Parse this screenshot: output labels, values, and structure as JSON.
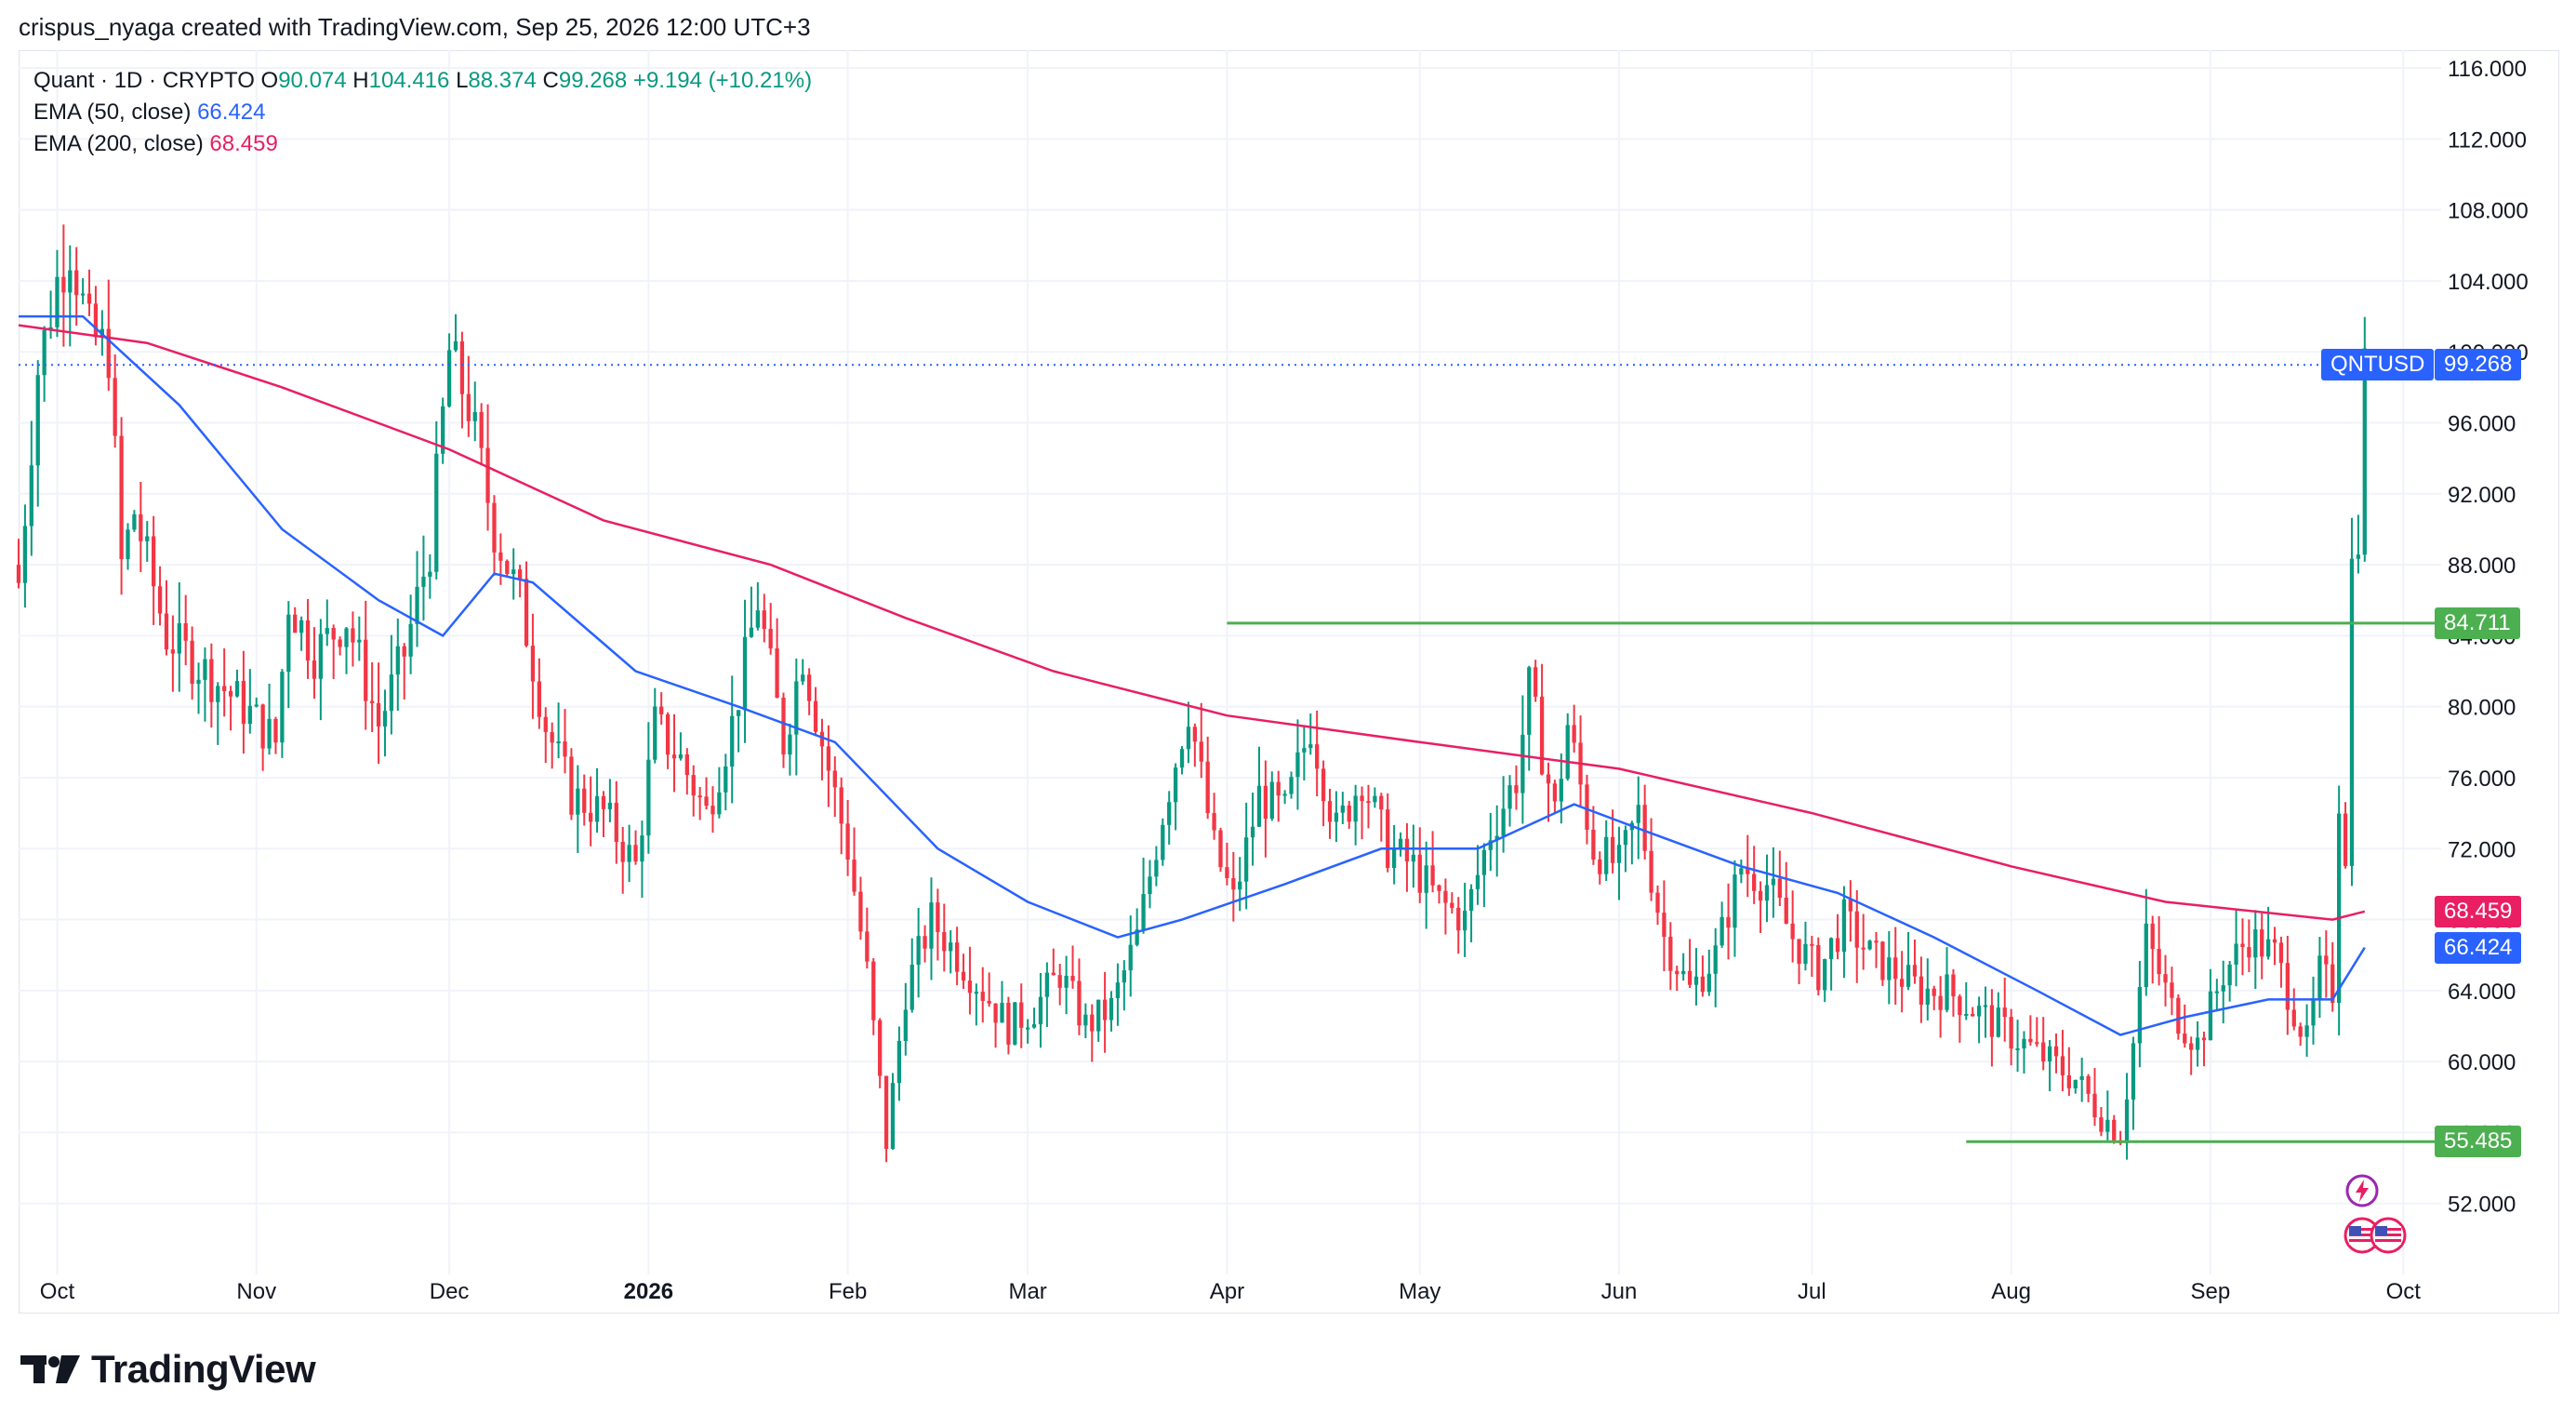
{
  "header": {
    "attribution": "crispus_nyaga created with TradingView.com, Sep 25, 2026 12:00 UTC+3"
  },
  "legend": {
    "symbol": "Quant · 1D · CRYPTO",
    "open_label": "O",
    "open": "90.074",
    "high_label": "H",
    "high": "104.416",
    "low_label": "L",
    "low": "88.374",
    "close_label": "C",
    "close": "99.268",
    "change": "+9.194 (+10.21%)",
    "ema50_label": "EMA (50, close)",
    "ema50_value": "66.424",
    "ema200_label": "EMA (200, close)",
    "ema200_value": "68.459"
  },
  "tags": {
    "symbol_tag": "QNTUSD",
    "last_price": "99.268",
    "resistance": "84.711",
    "ema200": "68.459",
    "ema50": "66.424",
    "support": "55.485"
  },
  "colors": {
    "up": "#089981",
    "down": "#f23645",
    "ema50": "#2962ff",
    "ema200": "#e91e63",
    "level": "#4caf50",
    "grid": "#f0f3fa",
    "last_price": "#2962ff"
  },
  "footer": {
    "brand": "TradingView"
  },
  "chart_data": {
    "type": "candlestick",
    "ylim": [
      48,
      117
    ],
    "y_ticks": [
      "52.000",
      "56.000",
      "60.000",
      "64.000",
      "68.000",
      "72.000",
      "76.000",
      "80.000",
      "84.000",
      "88.000",
      "92.000",
      "96.000",
      "100.000",
      "104.000",
      "108.000",
      "112.000",
      "116.000"
    ],
    "x_ticks": [
      {
        "label": "Oct",
        "date": "2025-10-01",
        "bold": false
      },
      {
        "label": "Nov",
        "date": "2025-11-01",
        "bold": false
      },
      {
        "label": "Dec",
        "date": "2025-12-01",
        "bold": false
      },
      {
        "label": "2026",
        "date": "2026-01-01",
        "bold": true
      },
      {
        "label": "Feb",
        "date": "2026-02-01",
        "bold": false
      },
      {
        "label": "Mar",
        "date": "2026-03-01",
        "bold": false
      },
      {
        "label": "Apr",
        "date": "2026-04-01",
        "bold": false
      },
      {
        "label": "May",
        "date": "2026-05-01",
        "bold": false
      },
      {
        "label": "Jun",
        "date": "2026-06-01",
        "bold": false
      },
      {
        "label": "Jul",
        "date": "2026-07-01",
        "bold": false
      },
      {
        "label": "Aug",
        "date": "2026-08-01",
        "bold": false
      },
      {
        "label": "Sep",
        "date": "2026-09-01",
        "bold": false
      },
      {
        "label": "Oct",
        "date": "2026-10-01",
        "bold": false
      }
    ],
    "x_range": [
      "2025-09-25",
      "2026-10-04"
    ],
    "series": [
      {
        "name": "EMA (50, close)",
        "kind": "line"
      },
      {
        "name": "EMA (200, close)",
        "kind": "line"
      }
    ],
    "close_path": [
      [
        "2025-09-25",
        87
      ],
      [
        "2025-09-28",
        99
      ],
      [
        "2025-10-01",
        104
      ],
      [
        "2025-10-03",
        106
      ],
      [
        "2025-10-06",
        101
      ],
      [
        "2025-10-09",
        100
      ],
      [
        "2025-10-11",
        88
      ],
      [
        "2025-10-13",
        91
      ],
      [
        "2025-10-18",
        84
      ],
      [
        "2025-10-24",
        82
      ],
      [
        "2025-10-30",
        80
      ],
      [
        "2025-11-04",
        78
      ],
      [
        "2025-11-06",
        86
      ],
      [
        "2025-11-10",
        83
      ],
      [
        "2025-11-15",
        85
      ],
      [
        "2025-11-20",
        79
      ],
      [
        "2025-11-24",
        83
      ],
      [
        "2025-11-28",
        89
      ],
      [
        "2025-12-01",
        100
      ],
      [
        "2025-12-04",
        97
      ],
      [
        "2025-12-08",
        90
      ],
      [
        "2025-12-12",
        86
      ],
      [
        "2025-12-16",
        79
      ],
      [
        "2025-12-20",
        75
      ],
      [
        "2025-12-25",
        74
      ],
      [
        "2025-12-30",
        71
      ],
      [
        "2026-01-02",
        79
      ],
      [
        "2026-01-06",
        77
      ],
      [
        "2026-01-10",
        74
      ],
      [
        "2026-01-14",
        79
      ],
      [
        "2026-01-18",
        86
      ],
      [
        "2026-01-22",
        78
      ],
      [
        "2026-01-25",
        83
      ],
      [
        "2026-01-28",
        78
      ],
      [
        "2026-02-01",
        72
      ],
      [
        "2026-02-04",
        65
      ],
      [
        "2026-02-07",
        55.5
      ],
      [
        "2026-02-10",
        64
      ],
      [
        "2026-02-14",
        68
      ],
      [
        "2026-02-18",
        66
      ],
      [
        "2026-02-22",
        64
      ],
      [
        "2026-02-26",
        62
      ],
      [
        "2026-03-02",
        63
      ],
      [
        "2026-03-06",
        65
      ],
      [
        "2026-03-10",
        62
      ],
      [
        "2026-03-14",
        63
      ],
      [
        "2026-03-18",
        67
      ],
      [
        "2026-03-22",
        74
      ],
      [
        "2026-03-26",
        80
      ],
      [
        "2026-03-30",
        72
      ],
      [
        "2026-04-02",
        69
      ],
      [
        "2026-04-06",
        75
      ],
      [
        "2026-04-10",
        74
      ],
      [
        "2026-04-14",
        79
      ],
      [
        "2026-04-18",
        73
      ],
      [
        "2026-04-22",
        76
      ],
      [
        "2026-04-26",
        72
      ],
      [
        "2026-04-30",
        71
      ],
      [
        "2026-05-04",
        69
      ],
      [
        "2026-05-08",
        68
      ],
      [
        "2026-05-12",
        73
      ],
      [
        "2026-05-16",
        76
      ],
      [
        "2026-05-18",
        81
      ],
      [
        "2026-05-22",
        74
      ],
      [
        "2026-05-24",
        79
      ],
      [
        "2026-05-28",
        72
      ],
      [
        "2026-06-01",
        71
      ],
      [
        "2026-06-04",
        74
      ],
      [
        "2026-06-08",
        67
      ],
      [
        "2026-06-12",
        64
      ],
      [
        "2026-06-16",
        66
      ],
      [
        "2026-06-20",
        71
      ],
      [
        "2026-06-24",
        70
      ],
      [
        "2026-06-28",
        67
      ],
      [
        "2026-07-02",
        65
      ],
      [
        "2026-07-06",
        68
      ],
      [
        "2026-07-10",
        66
      ],
      [
        "2026-07-14",
        65
      ],
      [
        "2026-07-18",
        64
      ],
      [
        "2026-07-22",
        64
      ],
      [
        "2026-07-26",
        63
      ],
      [
        "2026-07-30",
        62
      ],
      [
        "2026-08-03",
        61
      ],
      [
        "2026-08-07",
        60
      ],
      [
        "2026-08-11",
        59
      ],
      [
        "2026-08-15",
        57
      ],
      [
        "2026-08-18",
        56
      ],
      [
        "2026-08-20",
        61
      ],
      [
        "2026-08-22",
        67
      ],
      [
        "2026-08-26",
        63
      ],
      [
        "2026-08-30",
        61
      ],
      [
        "2026-09-03",
        65
      ],
      [
        "2026-09-07",
        67
      ],
      [
        "2026-09-11",
        66
      ],
      [
        "2026-09-14",
        63
      ],
      [
        "2026-09-16",
        61
      ],
      [
        "2026-09-18",
        65
      ],
      [
        "2026-09-20",
        64
      ],
      [
        "2026-09-21",
        75
      ],
      [
        "2026-09-22",
        72
      ],
      [
        "2026-09-23",
        88
      ],
      [
        "2026-09-24",
        90.074
      ],
      [
        "2026-09-25",
        99.268
      ]
    ],
    "ema50_path": [
      [
        "2025-09-25",
        102
      ],
      [
        "2025-10-05",
        102
      ],
      [
        "2025-10-20",
        97
      ],
      [
        "2025-11-05",
        90
      ],
      [
        "2025-11-20",
        86
      ],
      [
        "2025-11-30",
        84
      ],
      [
        "2025-12-08",
        87.5
      ],
      [
        "2025-12-14",
        87
      ],
      [
        "2025-12-30",
        82
      ],
      [
        "2026-01-15",
        80
      ],
      [
        "2026-01-30",
        78
      ],
      [
        "2026-02-15",
        72
      ],
      [
        "2026-03-01",
        69
      ],
      [
        "2026-03-15",
        67
      ],
      [
        "2026-03-25",
        68
      ],
      [
        "2026-04-10",
        70
      ],
      [
        "2026-04-25",
        72
      ],
      [
        "2026-05-10",
        72
      ],
      [
        "2026-05-25",
        74.5
      ],
      [
        "2026-06-05",
        73
      ],
      [
        "2026-06-20",
        71
      ],
      [
        "2026-07-05",
        69.5
      ],
      [
        "2026-07-20",
        67
      ],
      [
        "2026-08-05",
        64
      ],
      [
        "2026-08-18",
        61.5
      ],
      [
        "2026-08-28",
        62.5
      ],
      [
        "2026-09-10",
        63.5
      ],
      [
        "2026-09-20",
        63.5
      ],
      [
        "2026-09-25",
        66.424
      ]
    ],
    "ema200_path": [
      [
        "2025-09-25",
        101.5
      ],
      [
        "2025-10-15",
        100.5
      ],
      [
        "2025-11-05",
        98
      ],
      [
        "2025-12-01",
        94.5
      ],
      [
        "2025-12-25",
        90.5
      ],
      [
        "2026-01-20",
        88
      ],
      [
        "2026-02-10",
        85
      ],
      [
        "2026-03-05",
        82
      ],
      [
        "2026-04-01",
        79.5
      ],
      [
        "2026-05-01",
        78
      ],
      [
        "2026-06-01",
        76.5
      ],
      [
        "2026-07-01",
        74
      ],
      [
        "2026-08-01",
        71
      ],
      [
        "2026-08-25",
        69
      ],
      [
        "2026-09-20",
        68
      ],
      [
        "2026-09-25",
        68.459
      ]
    ],
    "resistance_level": {
      "value": 84.711,
      "from": "2026-04-01",
      "to": "2026-09-30"
    },
    "support_level": {
      "value": 55.485,
      "from": "2026-07-25",
      "to": "2026-09-30"
    },
    "last_price_line": {
      "value": 99.268
    }
  }
}
